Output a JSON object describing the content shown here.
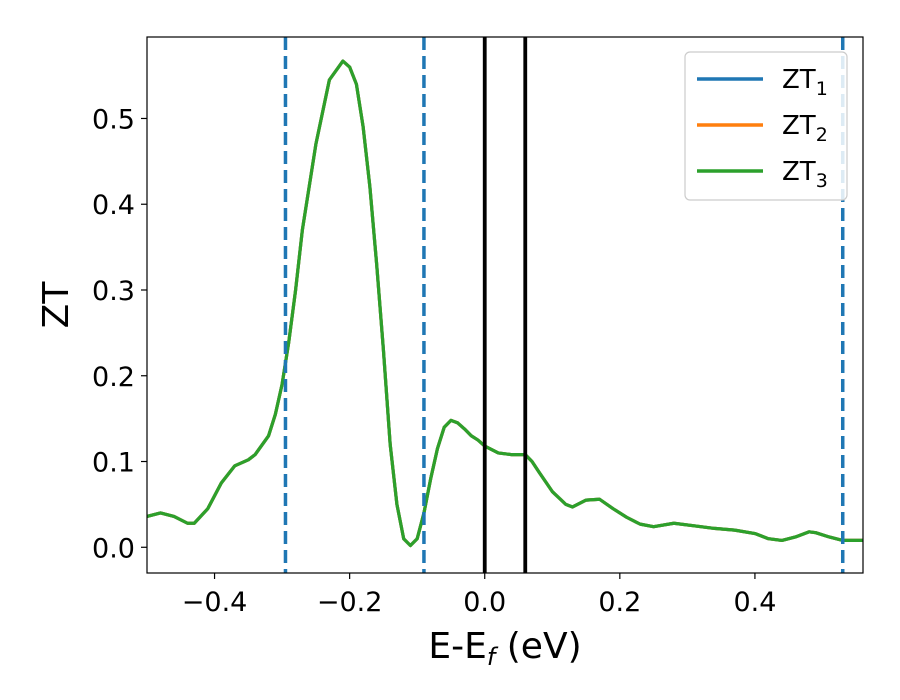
{
  "chart_data": {
    "type": "line",
    "title": "",
    "xlabel": "E-E",
    "xlabel_sub": "f",
    "xlabel_suffix": " (eV)",
    "ylabel": "ZT",
    "xlim": [
      -0.5,
      0.56
    ],
    "ylim": [
      -0.03,
      0.595
    ],
    "xticks": [
      -0.4,
      -0.2,
      0.0,
      0.2,
      0.4
    ],
    "xtick_labels": [
      "−0.4",
      "−0.2",
      "0.0",
      "0.2",
      "0.4"
    ],
    "yticks": [
      0.0,
      0.1,
      0.2,
      0.3,
      0.4,
      0.5
    ],
    "ytick_labels": [
      "0.0",
      "0.1",
      "0.2",
      "0.3",
      "0.4",
      "0.5"
    ],
    "grid": false,
    "legend_position": "top-right",
    "series": [
      {
        "name": "ZT",
        "name_sub": "1",
        "color": "#1f77b4",
        "x": [
          -0.5,
          -0.48,
          -0.46,
          -0.44,
          -0.43,
          -0.41,
          -0.39,
          -0.37,
          -0.35,
          -0.34,
          -0.32,
          -0.31,
          -0.3,
          -0.29,
          -0.28,
          -0.27,
          -0.25,
          -0.23,
          -0.21,
          -0.2,
          -0.19,
          -0.18,
          -0.17,
          -0.16,
          -0.15,
          -0.14,
          -0.13,
          -0.12,
          -0.11,
          -0.1,
          -0.09,
          -0.08,
          -0.07,
          -0.06,
          -0.05,
          -0.04,
          -0.03,
          -0.02,
          -0.01,
          0.0,
          0.02,
          0.04,
          0.06,
          0.07,
          0.08,
          0.1,
          0.12,
          0.13,
          0.15,
          0.17,
          0.19,
          0.21,
          0.23,
          0.25,
          0.28,
          0.31,
          0.34,
          0.37,
          0.4,
          0.42,
          0.44,
          0.46,
          0.48,
          0.49,
          0.51,
          0.53,
          0.56
        ],
        "y": [
          0.036,
          0.04,
          0.036,
          0.028,
          0.028,
          0.045,
          0.075,
          0.095,
          0.102,
          0.108,
          0.13,
          0.155,
          0.19,
          0.24,
          0.3,
          0.37,
          0.47,
          0.545,
          0.567,
          0.56,
          0.54,
          0.49,
          0.42,
          0.33,
          0.23,
          0.12,
          0.05,
          0.01,
          0.002,
          0.01,
          0.04,
          0.08,
          0.115,
          0.14,
          0.148,
          0.145,
          0.138,
          0.13,
          0.125,
          0.118,
          0.11,
          0.108,
          0.108,
          0.1,
          0.088,
          0.065,
          0.05,
          0.047,
          0.055,
          0.056,
          0.045,
          0.035,
          0.027,
          0.024,
          0.028,
          0.025,
          0.022,
          0.02,
          0.016,
          0.01,
          0.008,
          0.012,
          0.018,
          0.017,
          0.012,
          0.008,
          0.008
        ]
      },
      {
        "name": "ZT",
        "name_sub": "2",
        "color": "#ff7f0e",
        "x": [
          -0.5,
          -0.48,
          -0.46,
          -0.44,
          -0.43,
          -0.41,
          -0.39,
          -0.37,
          -0.35,
          -0.34,
          -0.32,
          -0.31,
          -0.3,
          -0.29,
          -0.28,
          -0.27,
          -0.25,
          -0.23,
          -0.21,
          -0.2,
          -0.19,
          -0.18,
          -0.17,
          -0.16,
          -0.15,
          -0.14,
          -0.13,
          -0.12,
          -0.11,
          -0.1,
          -0.09,
          -0.08,
          -0.07,
          -0.06,
          -0.05,
          -0.04,
          -0.03,
          -0.02,
          -0.01,
          0.0,
          0.02,
          0.04,
          0.06,
          0.07,
          0.08,
          0.1,
          0.12,
          0.13,
          0.15,
          0.17,
          0.19,
          0.21,
          0.23,
          0.25,
          0.28,
          0.31,
          0.34,
          0.37,
          0.4,
          0.42,
          0.44,
          0.46,
          0.48,
          0.49,
          0.51,
          0.53,
          0.56
        ],
        "y": [
          0.036,
          0.04,
          0.036,
          0.028,
          0.028,
          0.045,
          0.075,
          0.095,
          0.102,
          0.108,
          0.13,
          0.155,
          0.19,
          0.24,
          0.3,
          0.37,
          0.47,
          0.545,
          0.567,
          0.56,
          0.54,
          0.49,
          0.42,
          0.33,
          0.23,
          0.12,
          0.05,
          0.01,
          0.002,
          0.01,
          0.04,
          0.08,
          0.115,
          0.14,
          0.148,
          0.145,
          0.138,
          0.13,
          0.125,
          0.118,
          0.11,
          0.108,
          0.108,
          0.1,
          0.088,
          0.065,
          0.05,
          0.047,
          0.055,
          0.056,
          0.045,
          0.035,
          0.027,
          0.024,
          0.028,
          0.025,
          0.022,
          0.02,
          0.016,
          0.01,
          0.008,
          0.012,
          0.018,
          0.017,
          0.012,
          0.008,
          0.008
        ]
      },
      {
        "name": "ZT",
        "name_sub": "3",
        "color": "#2ca02c",
        "x": [
          -0.5,
          -0.48,
          -0.46,
          -0.44,
          -0.43,
          -0.41,
          -0.39,
          -0.37,
          -0.35,
          -0.34,
          -0.32,
          -0.31,
          -0.3,
          -0.29,
          -0.28,
          -0.27,
          -0.25,
          -0.23,
          -0.21,
          -0.2,
          -0.19,
          -0.18,
          -0.17,
          -0.16,
          -0.15,
          -0.14,
          -0.13,
          -0.12,
          -0.11,
          -0.1,
          -0.09,
          -0.08,
          -0.07,
          -0.06,
          -0.05,
          -0.04,
          -0.03,
          -0.02,
          -0.01,
          0.0,
          0.02,
          0.04,
          0.06,
          0.07,
          0.08,
          0.1,
          0.12,
          0.13,
          0.15,
          0.17,
          0.19,
          0.21,
          0.23,
          0.25,
          0.28,
          0.31,
          0.34,
          0.37,
          0.4,
          0.42,
          0.44,
          0.46,
          0.48,
          0.49,
          0.51,
          0.53,
          0.56
        ],
        "y": [
          0.036,
          0.04,
          0.036,
          0.028,
          0.028,
          0.045,
          0.075,
          0.095,
          0.102,
          0.108,
          0.13,
          0.155,
          0.19,
          0.24,
          0.3,
          0.37,
          0.47,
          0.545,
          0.567,
          0.56,
          0.54,
          0.49,
          0.42,
          0.33,
          0.23,
          0.12,
          0.05,
          0.01,
          0.002,
          0.01,
          0.04,
          0.08,
          0.115,
          0.14,
          0.148,
          0.145,
          0.138,
          0.13,
          0.125,
          0.118,
          0.11,
          0.108,
          0.108,
          0.1,
          0.088,
          0.065,
          0.05,
          0.047,
          0.055,
          0.056,
          0.045,
          0.035,
          0.027,
          0.024,
          0.028,
          0.025,
          0.022,
          0.02,
          0.016,
          0.01,
          0.008,
          0.012,
          0.018,
          0.017,
          0.012,
          0.008,
          0.008
        ]
      }
    ],
    "vlines": [
      {
        "x": -0.295,
        "color": "#1f77b4",
        "style": "dashed"
      },
      {
        "x": -0.09,
        "color": "#1f77b4",
        "style": "dashed"
      },
      {
        "x": 0.53,
        "color": "#1f77b4",
        "style": "dashed"
      },
      {
        "x": 0.0,
        "color": "#000000",
        "style": "solid"
      },
      {
        "x": 0.06,
        "color": "#000000",
        "style": "solid"
      }
    ]
  }
}
